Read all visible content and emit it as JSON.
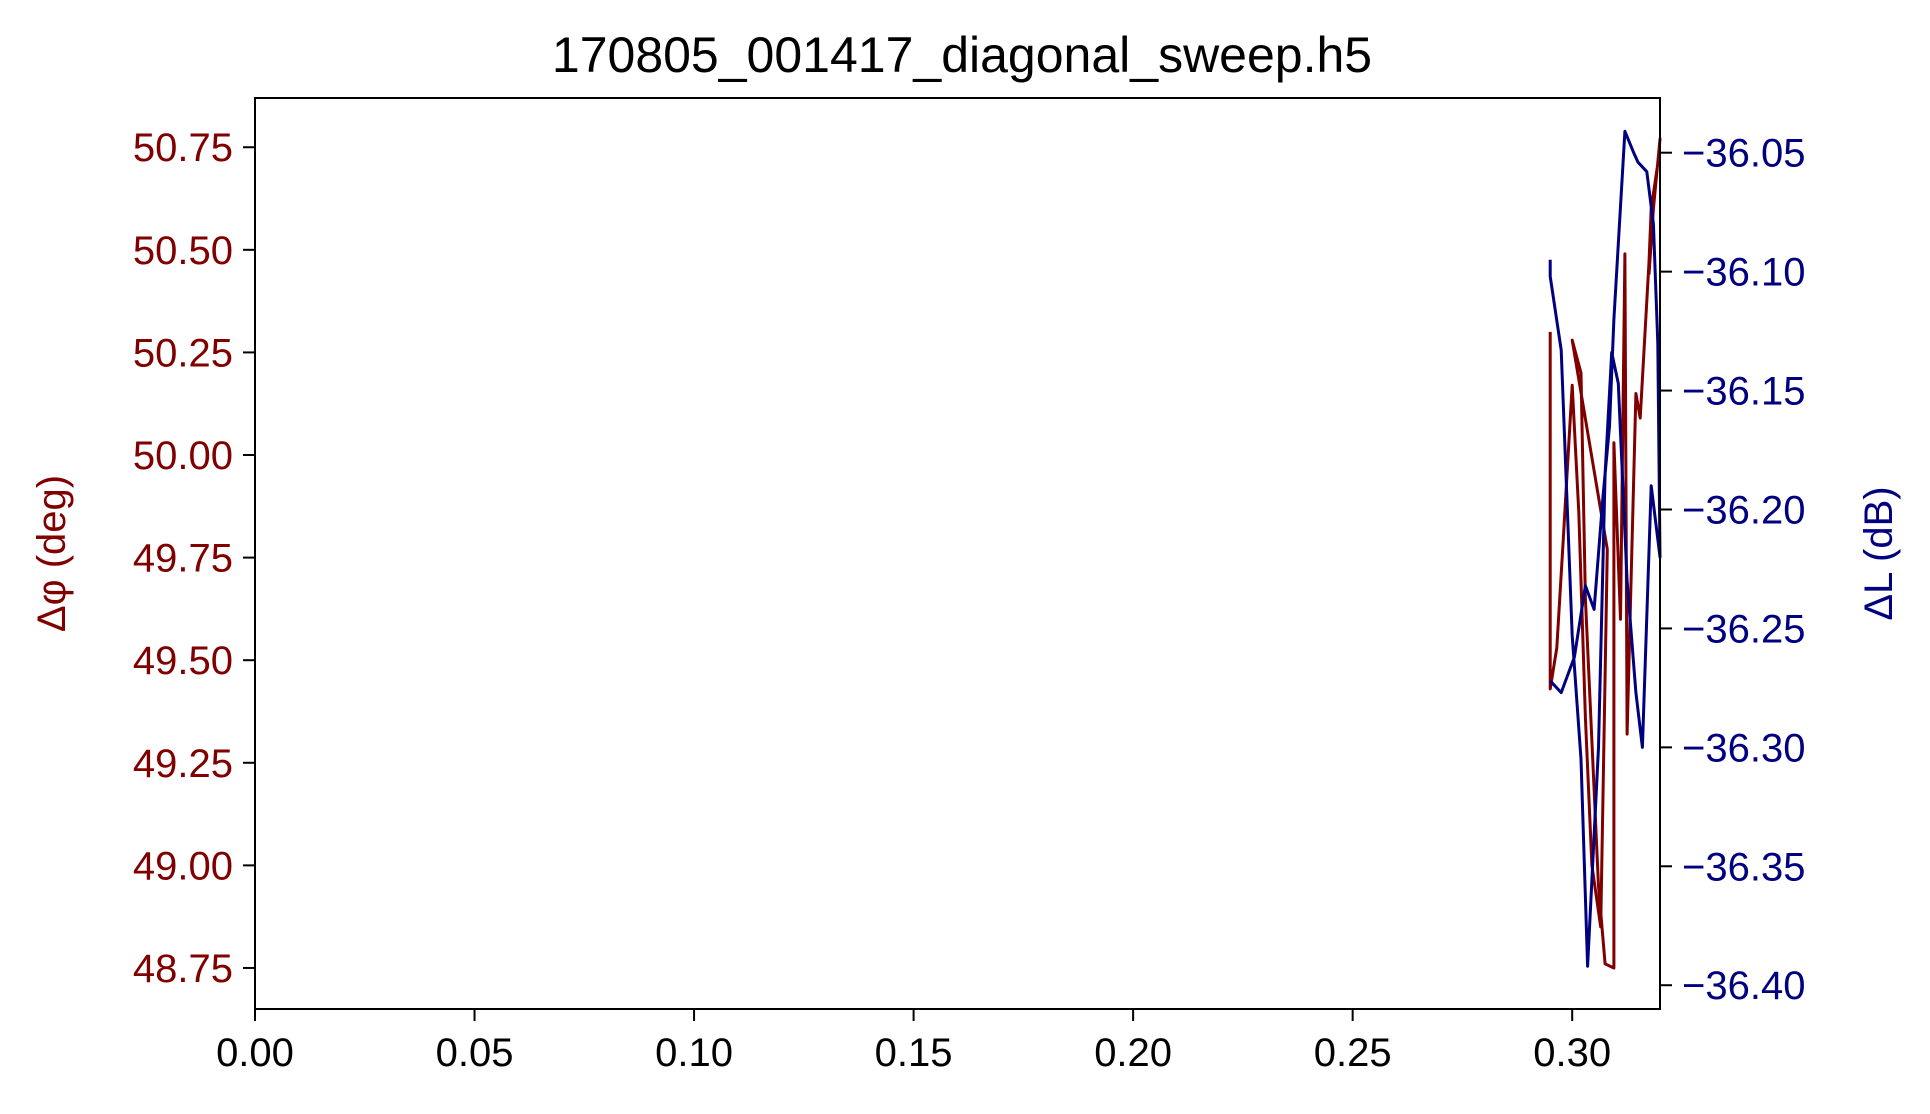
{
  "chart_data": {
    "type": "line",
    "title": "170805_001417_diagonal_sweep.h5",
    "xlim": [
      0.0,
      0.32
    ],
    "x_ticks": [
      "0.00",
      "0.05",
      "0.10",
      "0.15",
      "0.20",
      "0.25",
      "0.30"
    ],
    "x_tick_values": [
      0.0,
      0.05,
      0.1,
      0.15,
      0.2,
      0.25,
      0.3
    ],
    "y_left": {
      "label": "Δφ (deg)",
      "color": "#800000",
      "lim": [
        48.65,
        50.87
      ],
      "ticks": [
        "50.75",
        "50.50",
        "50.25",
        "50.00",
        "49.75",
        "49.50",
        "49.25",
        "49.00",
        "48.75"
      ],
      "tick_values": [
        50.75,
        50.5,
        50.25,
        50.0,
        49.75,
        49.5,
        49.25,
        49.0,
        48.75
      ]
    },
    "y_right": {
      "label": "ΔL (dB)",
      "color": "#000080",
      "lim": [
        -36.41,
        -36.027
      ],
      "ticks": [
        "−36.05",
        "−36.10",
        "−36.15",
        "−36.20",
        "−36.25",
        "−36.30",
        "−36.35",
        "−36.40"
      ],
      "tick_values": [
        -36.05,
        -36.1,
        -36.15,
        -36.2,
        -36.25,
        -36.3,
        -36.35,
        -36.4
      ]
    },
    "series": [
      {
        "axis": "left",
        "color": "#800000",
        "points": [
          [
            0.295,
            50.3
          ],
          [
            0.295,
            49.43
          ],
          [
            0.2965,
            49.53
          ],
          [
            0.298,
            49.8
          ],
          [
            0.3,
            50.17
          ],
          [
            0.3015,
            49.86
          ],
          [
            0.303,
            49.36
          ],
          [
            0.3045,
            49.0
          ],
          [
            0.3065,
            48.85
          ],
          [
            0.308,
            49.77
          ],
          [
            0.3,
            50.28
          ],
          [
            0.302,
            50.2
          ],
          [
            0.303,
            49.65
          ],
          [
            0.306,
            48.95
          ],
          [
            0.3075,
            48.76
          ],
          [
            0.3095,
            48.75
          ],
          [
            0.3095,
            50.03
          ],
          [
            0.311,
            49.6
          ],
          [
            0.312,
            50.49
          ],
          [
            0.3125,
            49.32
          ],
          [
            0.3145,
            50.15
          ],
          [
            0.3155,
            50.09
          ],
          [
            0.3175,
            50.47
          ],
          [
            0.318,
            50.6
          ],
          [
            0.3195,
            50.71
          ],
          [
            0.32,
            50.77
          ],
          [
            0.3185,
            50.6
          ],
          [
            0.3175,
            50.44
          ]
        ]
      },
      {
        "axis": "right",
        "color": "#000080",
        "points": [
          [
            0.295,
            -36.095
          ],
          [
            0.295,
            -36.102
          ],
          [
            0.2975,
            -36.133
          ],
          [
            0.3,
            -36.253
          ],
          [
            0.302,
            -36.305
          ],
          [
            0.3035,
            -36.392
          ],
          [
            0.306,
            -36.3
          ],
          [
            0.3075,
            -36.185
          ],
          [
            0.309,
            -36.134
          ],
          [
            0.3105,
            -36.147
          ],
          [
            0.3125,
            -36.23
          ],
          [
            0.3145,
            -36.277
          ],
          [
            0.316,
            -36.3
          ],
          [
            0.318,
            -36.19
          ],
          [
            0.32,
            -36.22
          ],
          [
            0.3195,
            -36.13
          ],
          [
            0.3185,
            -36.08
          ],
          [
            0.317,
            -36.058
          ],
          [
            0.315,
            -36.054
          ],
          [
            0.314,
            -36.05
          ],
          [
            0.312,
            -36.041
          ],
          [
            0.3095,
            -36.12
          ],
          [
            0.3085,
            -36.165
          ],
          [
            0.307,
            -36.195
          ],
          [
            0.305,
            -36.242
          ],
          [
            0.303,
            -36.232
          ],
          [
            0.3005,
            -36.262
          ],
          [
            0.2975,
            -36.277
          ],
          [
            0.295,
            -36.272
          ]
        ]
      }
    ]
  }
}
